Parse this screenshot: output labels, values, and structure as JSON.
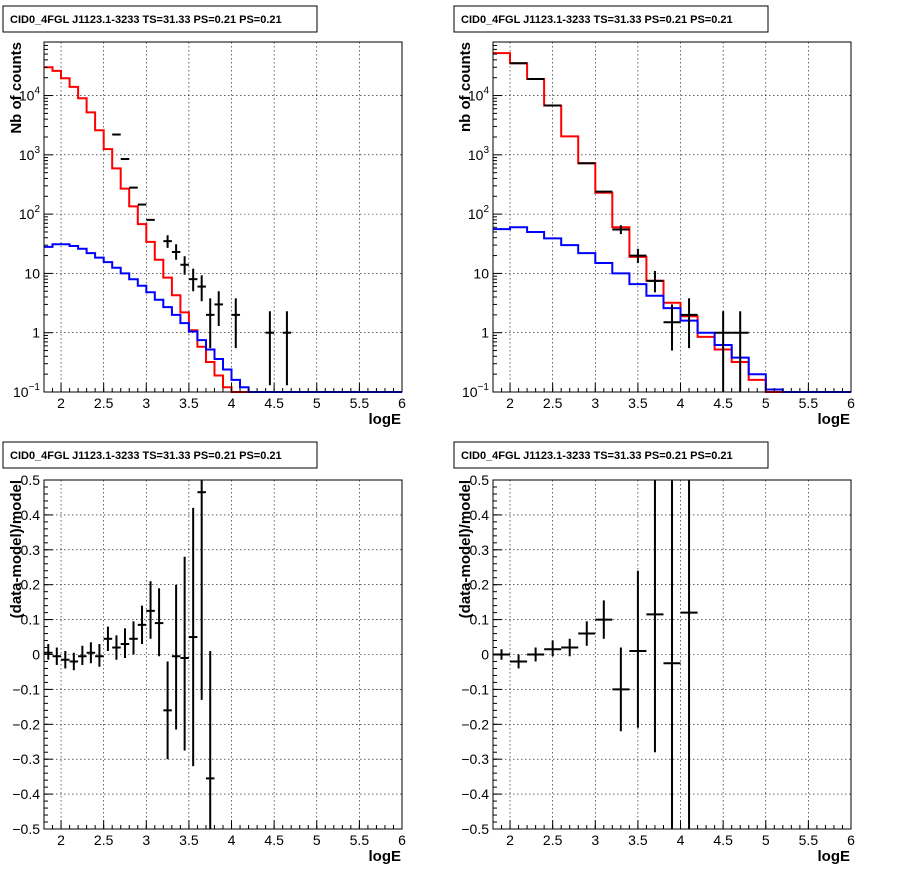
{
  "colors": {
    "data": "#000000",
    "total_model": "#ff0000",
    "background_model": "#0000ff"
  },
  "chart_data": [
    {
      "id": "counts-stacked",
      "type": "line",
      "title": "CID0_4FGL J1123.1-3233 TS=31.33 PS=0.21 PS=0.21",
      "xlabel": "logE",
      "ylabel": "Nb of counts",
      "xlim": [
        1.8,
        6.0
      ],
      "ylim": [
        0.1,
        80000
      ],
      "yscale": "log",
      "grid": true,
      "xticks": [
        "2",
        "2.5",
        "3",
        "3.5",
        "4",
        "4.5",
        "5",
        "5.5",
        "6"
      ],
      "yticks": [
        "10^-1",
        "1",
        "10",
        "10^2",
        "10^3",
        "10^4"
      ],
      "bin_edges": [
        1.8,
        1.9,
        2.0,
        2.1,
        2.2,
        2.3,
        2.4,
        2.5,
        2.6,
        2.7,
        2.8,
        2.9,
        3.0,
        3.1,
        3.2,
        3.3,
        3.4,
        3.5,
        3.6,
        3.7,
        3.8,
        3.9,
        4.0,
        4.1,
        4.2,
        4.3,
        4.4,
        4.5,
        4.6,
        4.7,
        4.8,
        4.9,
        5.0,
        5.1,
        5.2,
        5.3,
        5.4,
        5.5,
        5.6,
        5.7,
        5.8,
        5.9,
        6.0
      ],
      "series": [
        {
          "role": "total_model",
          "style": "step",
          "values": [
            30000,
            26000,
            19500,
            14000,
            9000,
            5200,
            2600,
            1250,
            590,
            270,
            135,
            68,
            34,
            17,
            8.5,
            4.3,
            2.2,
            1.1,
            0.58,
            0.32,
            0.19,
            0.12,
            0.1,
            0.1,
            0.1,
            0.1,
            0.1,
            0.1,
            0.1,
            0.1,
            0.1,
            0.1,
            0.1,
            0.1,
            0.1,
            0.1,
            0.1,
            0.1,
            0.1,
            0.1,
            0.1,
            0.1
          ]
        },
        {
          "role": "background_model",
          "style": "step",
          "values": [
            28,
            31,
            31,
            29,
            26,
            22,
            18.5,
            15.5,
            12.5,
            10,
            8,
            6.2,
            4.8,
            3.6,
            2.7,
            2.0,
            1.45,
            1.05,
            0.75,
            0.52,
            0.36,
            0.24,
            0.16,
            0.12,
            0.1,
            0.1,
            0.1,
            0.1,
            0.1,
            0.1,
            0.1,
            0.1,
            0.1,
            0.1,
            0.1,
            0.1,
            0.1,
            0.1,
            0.1,
            0.1,
            0.1,
            0.1
          ]
        },
        {
          "role": "data",
          "style": "errorbar",
          "points": [
            {
              "x": 2.65,
              "y": 2200
            },
            {
              "x": 2.75,
              "y": 850
            },
            {
              "x": 2.85,
              "y": 280
            },
            {
              "x": 2.95,
              "y": 145
            },
            {
              "x": 3.05,
              "y": 80
            },
            {
              "x": 3.25,
              "y": 35,
              "lo": 27,
              "hi": 44
            },
            {
              "x": 3.35,
              "y": 23,
              "lo": 17,
              "hi": 31
            },
            {
              "x": 3.45,
              "y": 14,
              "lo": 9.5,
              "hi": 19.5
            },
            {
              "x": 3.55,
              "y": 8,
              "lo": 5,
              "hi": 12
            },
            {
              "x": 3.65,
              "y": 6,
              "lo": 3.4,
              "hi": 9.3
            },
            {
              "x": 3.75,
              "y": 2,
              "lo": 0.55,
              "hi": 3.8
            },
            {
              "x": 3.85,
              "y": 3,
              "lo": 1.3,
              "hi": 5
            },
            {
              "x": 4.05,
              "y": 2,
              "lo": 0.55,
              "hi": 3.8
            },
            {
              "x": 4.45,
              "y": 1,
              "lo": 0.13,
              "hi": 2.3
            },
            {
              "x": 4.65,
              "y": 1,
              "lo": 0.13,
              "hi": 2.3
            }
          ]
        }
      ]
    },
    {
      "id": "counts-summed",
      "type": "line",
      "title": "CID0_4FGL J1123.1-3233 TS=31.33 PS=0.21 PS=0.21",
      "xlabel": "logE",
      "ylabel": "nb of counts",
      "xlim": [
        1.8,
        6.0
      ],
      "ylim": [
        0.1,
        80000
      ],
      "yscale": "log",
      "grid": true,
      "xticks": [
        "2",
        "2.5",
        "3",
        "3.5",
        "4",
        "4.5",
        "5",
        "5.5",
        "6"
      ],
      "yticks": [
        "10^-1",
        "1",
        "10",
        "10^2",
        "10^3",
        "10^4"
      ],
      "bin_edges": [
        1.8,
        2.0,
        2.2,
        2.4,
        2.6,
        2.8,
        3.0,
        3.2,
        3.4,
        3.6,
        3.8,
        4.0,
        4.2,
        4.4,
        4.6,
        4.8,
        5.0,
        5.2,
        5.4,
        5.6,
        5.8,
        6.0
      ],
      "series": [
        {
          "role": "total_model",
          "style": "step",
          "values": [
            52000,
            35000,
            19000,
            6800,
            2050,
            720,
            230,
            60,
            19,
            7.5,
            3.2,
            1.9,
            0.85,
            0.52,
            0.32,
            0.16,
            0.1,
            0.1,
            0.1,
            0.1,
            0.1
          ]
        },
        {
          "role": "background_model",
          "style": "step",
          "values": [
            56,
            60,
            50,
            39,
            30,
            22,
            15,
            10,
            6.6,
            4.2,
            2.6,
            1.6,
            1.0,
            0.62,
            0.38,
            0.2,
            0.11,
            0.1,
            0.1,
            0.1,
            0.1
          ]
        },
        {
          "role": "data",
          "style": "errorbar",
          "points": [
            {
              "x": 2.1,
              "y": 35000
            },
            {
              "x": 2.3,
              "y": 19000
            },
            {
              "x": 2.5,
              "y": 6800
            },
            {
              "x": 2.9,
              "y": 720
            },
            {
              "x": 3.1,
              "y": 240
            },
            {
              "x": 3.3,
              "y": 55,
              "lo": 46,
              "hi": 65
            },
            {
              "x": 3.5,
              "y": 20,
              "lo": 15,
              "hi": 26
            },
            {
              "x": 3.7,
              "y": 7.5,
              "lo": 4.8,
              "hi": 11
            },
            {
              "x": 3.9,
              "y": 1.5,
              "lo": 0.5,
              "hi": 3
            },
            {
              "x": 4.1,
              "y": 2,
              "lo": 0.55,
              "hi": 3.8
            },
            {
              "x": 4.5,
              "y": 1,
              "lo": 0.1,
              "hi": 2.3
            },
            {
              "x": 4.7,
              "y": 1,
              "lo": 0.1,
              "hi": 2.3
            }
          ]
        }
      ]
    },
    {
      "id": "residuals-stacked",
      "type": "scatter",
      "title": "CID0_4FGL J1123.1-3233 TS=31.33 PS=0.21 PS=0.21",
      "xlabel": "logE",
      "ylabel": "(data-model)/model",
      "xlim": [
        1.8,
        6.0
      ],
      "ylim": [
        -0.5,
        0.5
      ],
      "grid": true,
      "xticks": [
        "2",
        "2.5",
        "3",
        "3.5",
        "4",
        "4.5",
        "5",
        "5.5",
        "6"
      ],
      "yticks": [
        "−0.5",
        "−0.4",
        "−0.3",
        "−0.2",
        "−0.1",
        "0",
        "0.1",
        "0.2",
        "0.3",
        "0.4",
        "0.5"
      ],
      "points": [
        {
          "x": 1.85,
          "y": 0.005,
          "lo": -0.015,
          "hi": 0.03
        },
        {
          "x": 1.95,
          "y": -0.005,
          "lo": -0.03,
          "hi": 0.02
        },
        {
          "x": 2.05,
          "y": -0.015,
          "lo": -0.04,
          "hi": 0.01
        },
        {
          "x": 2.15,
          "y": -0.02,
          "lo": -0.045,
          "hi": 0.005
        },
        {
          "x": 2.25,
          "y": -0.005,
          "lo": -0.03,
          "hi": 0.025
        },
        {
          "x": 2.35,
          "y": 0.005,
          "lo": -0.025,
          "hi": 0.035
        },
        {
          "x": 2.45,
          "y": -0.005,
          "lo": -0.035,
          "hi": 0.03
        },
        {
          "x": 2.55,
          "y": 0.045,
          "lo": 0.01,
          "hi": 0.08
        },
        {
          "x": 2.65,
          "y": 0.02,
          "lo": -0.015,
          "hi": 0.055
        },
        {
          "x": 2.75,
          "y": 0.03,
          "lo": -0.01,
          "hi": 0.075
        },
        {
          "x": 2.85,
          "y": 0.045,
          "lo": 0.0,
          "hi": 0.095
        },
        {
          "x": 2.95,
          "y": 0.085,
          "lo": 0.03,
          "hi": 0.14
        },
        {
          "x": 3.05,
          "y": 0.125,
          "lo": 0.045,
          "hi": 0.21
        },
        {
          "x": 3.15,
          "y": 0.09,
          "lo": -0.005,
          "hi": 0.19
        },
        {
          "x": 3.25,
          "y": -0.16,
          "lo": -0.3,
          "hi": -0.02
        },
        {
          "x": 3.35,
          "y": -0.005,
          "lo": -0.215,
          "hi": 0.2
        },
        {
          "x": 3.45,
          "y": -0.01,
          "lo": -0.275,
          "hi": 0.28
        },
        {
          "x": 3.55,
          "y": 0.05,
          "lo": -0.32,
          "hi": 0.42
        },
        {
          "x": 3.65,
          "y": 0.465,
          "lo": -0.13,
          "hi": 0.5
        },
        {
          "x": 3.75,
          "y": -0.355,
          "lo": -0.5,
          "hi": 0.01
        }
      ]
    },
    {
      "id": "residuals-summed",
      "type": "scatter",
      "title": "CID0_4FGL J1123.1-3233 TS=31.33 PS=0.21 PS=0.21",
      "xlabel": "logE",
      "ylabel": "(data-model)/model",
      "xlim": [
        1.8,
        6.0
      ],
      "ylim": [
        -0.5,
        0.5
      ],
      "grid": true,
      "xticks": [
        "2",
        "2.5",
        "3",
        "3.5",
        "4",
        "4.5",
        "5",
        "5.5",
        "6"
      ],
      "yticks": [
        "−0.5",
        "−0.4",
        "−0.3",
        "−0.2",
        "−0.1",
        "0",
        "0.1",
        "0.2",
        "0.3",
        "0.4",
        "0.5"
      ],
      "points": [
        {
          "x": 1.9,
          "y": 0.0,
          "lo": -0.015,
          "hi": 0.015
        },
        {
          "x": 2.1,
          "y": -0.02,
          "lo": -0.04,
          "hi": 0.0
        },
        {
          "x": 2.3,
          "y": 0.0,
          "lo": -0.02,
          "hi": 0.02
        },
        {
          "x": 2.5,
          "y": 0.015,
          "lo": -0.005,
          "hi": 0.04
        },
        {
          "x": 2.7,
          "y": 0.02,
          "lo": -0.005,
          "hi": 0.045
        },
        {
          "x": 2.9,
          "y": 0.06,
          "lo": 0.025,
          "hi": 0.095
        },
        {
          "x": 3.1,
          "y": 0.1,
          "lo": 0.045,
          "hi": 0.155
        },
        {
          "x": 3.3,
          "y": -0.1,
          "lo": -0.22,
          "hi": 0.02
        },
        {
          "x": 3.5,
          "y": 0.01,
          "lo": -0.21,
          "hi": 0.24
        },
        {
          "x": 3.7,
          "y": 0.115,
          "lo": -0.28,
          "hi": 0.5
        },
        {
          "x": 3.9,
          "y": -0.025,
          "lo": -0.5,
          "hi": 0.5
        },
        {
          "x": 4.1,
          "y": 0.12,
          "lo": -0.5,
          "hi": 0.5
        }
      ]
    }
  ]
}
